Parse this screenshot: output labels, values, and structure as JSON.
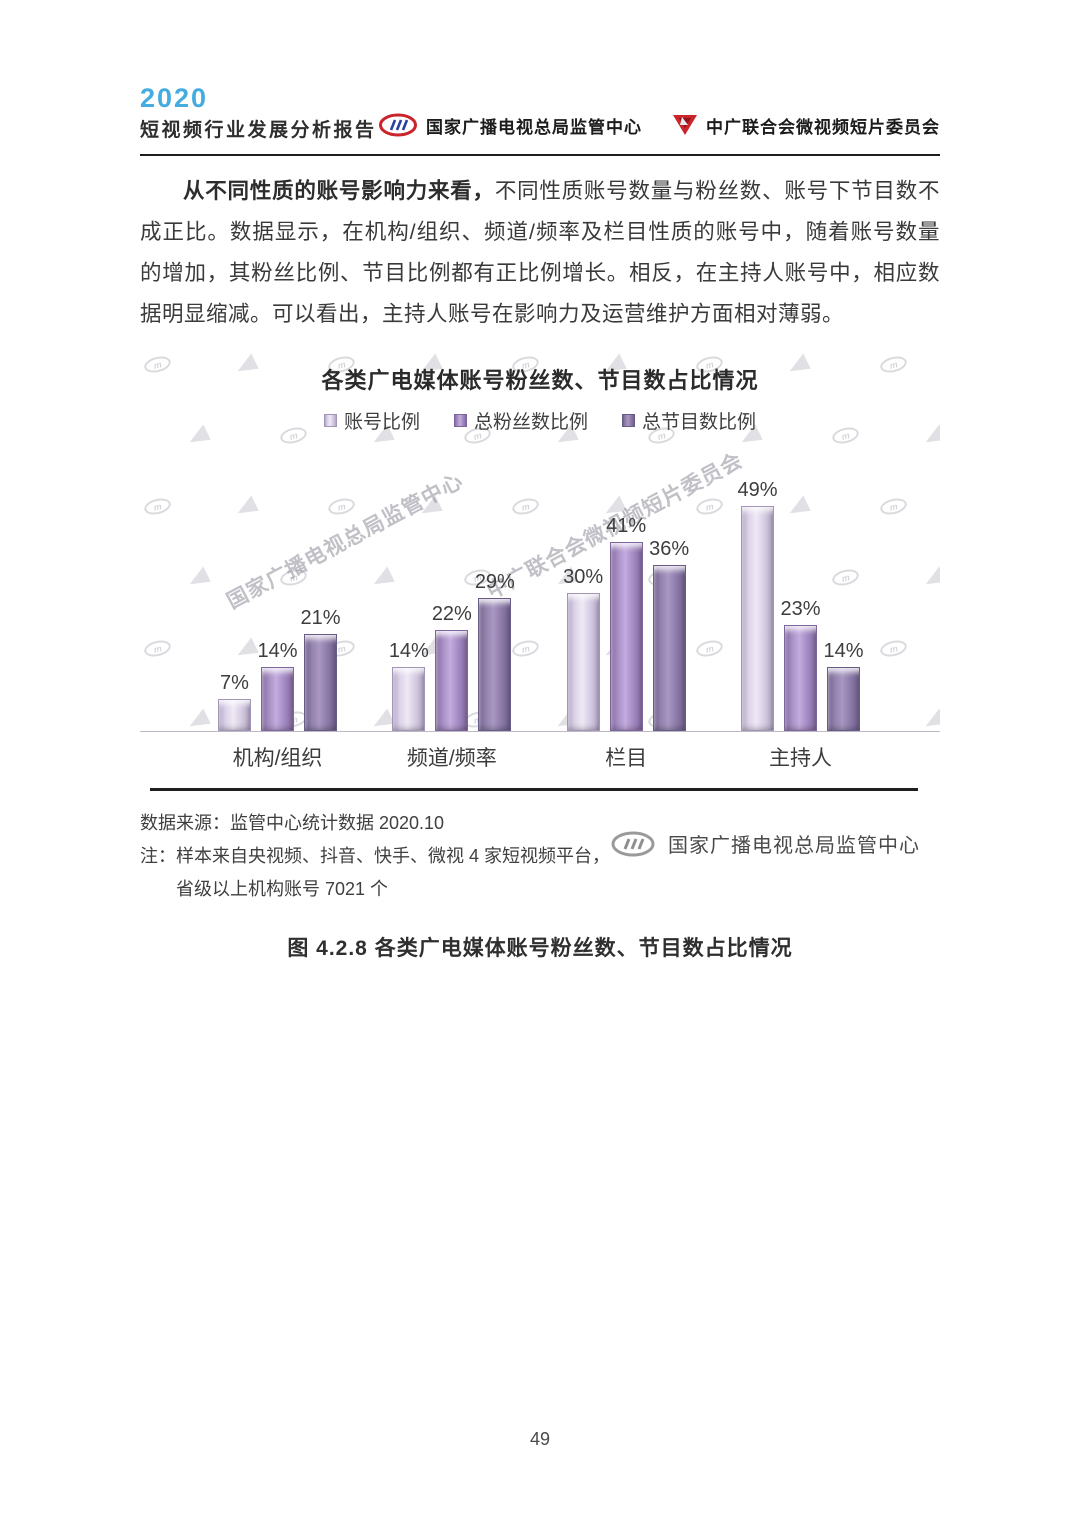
{
  "header": {
    "year": "2020",
    "report_title": "短视频行业发展分析报告",
    "org1": "国家广播电视总局监管中心",
    "org2": "中广联合会微视频短片委员会"
  },
  "paragraph": {
    "lead": "从不同性质的账号影响力来看，",
    "body": "不同性质账号数量与粉丝数、账号下节目数不成正比。数据显示，在机构/组织、频道/频率及栏目性质的账号中，随着账号数量的增加，其粉丝比例、节目比例都有正比例增长。相反，在主持人账号中，相应数据明显缩减。可以看出，主持人账号在影响力及运营维护方面相对薄弱。"
  },
  "chart_data": {
    "type": "bar",
    "title": "各类广电媒体账号粉丝数、节目数占比情况",
    "categories": [
      "机构/组织",
      "频道/频率",
      "栏目",
      "主持人"
    ],
    "series": [
      {
        "name": "账号比例",
        "color": "#d6cce3",
        "values": [
          7,
          14,
          30,
          49
        ]
      },
      {
        "name": "总粉丝数比例",
        "color": "#a48bc3",
        "values": [
          14,
          22,
          41,
          23
        ]
      },
      {
        "name": "总节目数比例",
        "color": "#8d7ba9",
        "values": [
          21,
          29,
          36,
          14
        ]
      }
    ],
    "unit": "%",
    "ylim": [
      0,
      52
    ],
    "grid": false,
    "legend_position": "top",
    "data_labels": true
  },
  "figure_footer": {
    "source": "数据来源：监管中心统计数据 2020.10",
    "note_line1": "注：样本来自央视频、抖音、快手、微视 4 家短视频平台，",
    "note_line2": "省级以上机构账号 7021 个",
    "org": "国家广播电视总局监管中心"
  },
  "watermark": {
    "text1": "国家广播电视总局监管中心",
    "text2": "中广联合会微视频短片委员会"
  },
  "caption": "图 4.2.8 各类广电媒体账号粉丝数、节目数占比情况",
  "page_number": "49"
}
